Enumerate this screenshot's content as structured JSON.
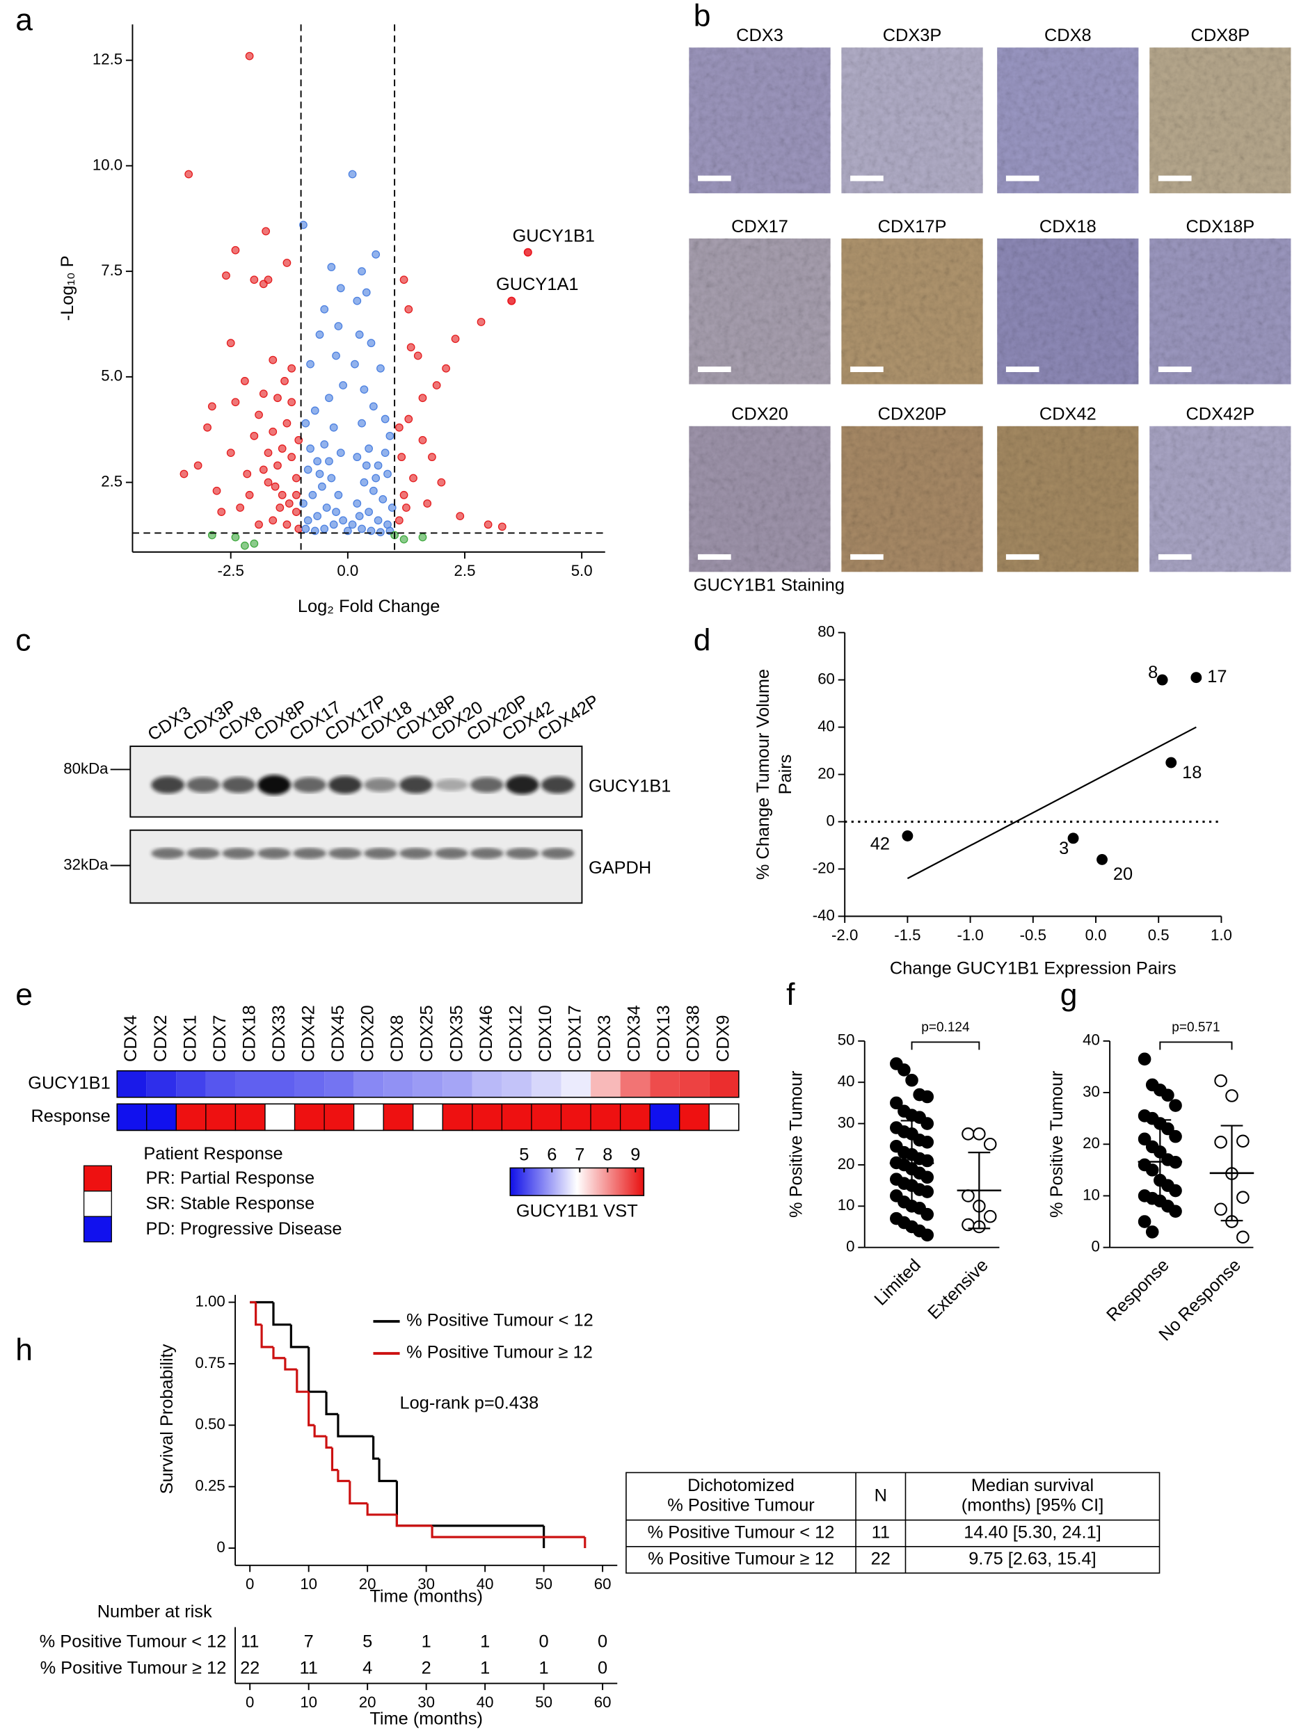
{
  "panel_labels": [
    "a",
    "b",
    "c",
    "d",
    "e",
    "f",
    "g",
    "h"
  ],
  "chart_data": [
    {
      "type": "scatter",
      "xlabel": "Log₂ Fold Change",
      "ylabel": "-Log₁₀ P",
      "xlim": [
        -4.6,
        5.5
      ],
      "ylim": [
        0.85,
        13.35
      ],
      "xticks": [
        -2.5,
        {
          "value": 0,
          "label": "0.0"
        },
        2.5,
        {
          "value": 5,
          "label": "5.0"
        }
      ],
      "yticks": [
        2.5,
        {
          "value": 5,
          "label": "5.0"
        },
        7.5,
        {
          "value": 10,
          "label": "10.0"
        },
        12.5
      ],
      "thresholds": {
        "x": [
          -1,
          1
        ],
        "y": 1.3
      },
      "annotations": [
        {
          "text": "GUCY1B1",
          "x": 3.85,
          "y": 7.95,
          "color": "#e8141c"
        },
        {
          "text": "GUCY1A1",
          "x": 3.5,
          "y": 6.8,
          "color": "#e8141c"
        }
      ],
      "series": [
        {
          "color": "#e41a1c",
          "x": [
            -2.1,
            -3.4,
            -2.4,
            -1.75,
            -1.7,
            -1.8,
            -2.6,
            -1.3,
            -2.0,
            -2.5,
            -1.6,
            -1.2,
            -3.0,
            -3.5,
            -3.2,
            -2.8,
            -2.9,
            -2.2,
            -2.5,
            -2.0,
            -1.5,
            -1.3,
            -1.8,
            -1.4,
            -1.1,
            -1.6,
            -2.3,
            -1.2,
            -1.9,
            -1.4,
            -1.7,
            -1.1,
            -2.7,
            -1.3,
            -1.5,
            -2.1,
            -1.2,
            -1.6,
            -1.9,
            -1.05,
            -1.35,
            -2.4,
            -1.8,
            -1.1,
            -1.45,
            -1.7,
            -2.15,
            -1.25,
            -1.55,
            -1.05,
            1.2,
            1.5,
            2.3,
            2.85,
            1.3,
            2.1,
            1.9,
            1.3,
            1.6,
            1.8,
            1.1,
            1.4,
            1.2,
            1.1,
            2.0,
            1.7,
            2.4,
            3.0,
            3.3,
            1.35,
            1.15,
            1.6,
            1.25
          ],
          "y": [
            12.6,
            9.8,
            8.0,
            8.45,
            7.3,
            7.2,
            7.4,
            7.7,
            7.3,
            5.8,
            5.4,
            5.2,
            3.8,
            2.7,
            2.9,
            2.3,
            4.3,
            4.9,
            3.2,
            3.6,
            4.5,
            3.9,
            2.8,
            2.2,
            1.8,
            1.6,
            1.9,
            3.1,
            4.1,
            3.3,
            2.5,
            2.6,
            1.8,
            1.5,
            2.9,
            2.2,
            4.4,
            3.7,
            1.5,
            3.5,
            4.9,
            4.4,
            4.6,
            2.2,
            1.9,
            3.2,
            2.7,
            2.0,
            2.4,
            1.4,
            7.3,
            5.5,
            5.9,
            6.3,
            6.6,
            5.2,
            4.8,
            4.0,
            3.5,
            3.1,
            3.8,
            2.6,
            2.2,
            1.6,
            2.5,
            2.0,
            1.7,
            1.5,
            1.45,
            5.7,
            3.1,
            4.5,
            1.9
          ]
        },
        {
          "color": "#4a7fe0",
          "x": [
            0.1,
            -0.95,
            0.6,
            -0.35,
            0.3,
            -0.15,
            0.4,
            -0.5,
            0.2,
            -0.2,
            0.25,
            -0.6,
            0.5,
            -0.25,
            0.15,
            -0.8,
            0.7,
            -0.1,
            0.35,
            -0.4,
            0.55,
            -0.7,
            0.8,
            -0.9,
            0.9,
            -0.3,
            0.3,
            -0.5,
            0.45,
            -0.15,
            0.2,
            -0.65,
            0.65,
            -0.85,
            0.85,
            -0.35,
            0.35,
            -0.55,
            0.55,
            -0.75,
            0.75,
            -0.95,
            0.95,
            -0.2,
            0.2,
            -0.45,
            0.45,
            -0.65,
            0.65,
            -0.85,
            0.85,
            -0.1,
            0.1,
            -0.3,
            0.3,
            -0.5,
            0.5,
            -0.7,
            0.7,
            -0.9,
            0.9,
            0.0,
            -0.25,
            0.25,
            -0.6,
            0.6,
            -0.4,
            0.4,
            -0.8,
            0.8
          ],
          "y": [
            9.8,
            8.6,
            7.9,
            7.6,
            7.5,
            7.1,
            7.0,
            6.6,
            6.8,
            6.2,
            6.0,
            6.0,
            5.8,
            5.5,
            5.3,
            5.3,
            5.2,
            4.8,
            4.7,
            4.5,
            4.3,
            4.2,
            4.0,
            3.9,
            3.6,
            3.8,
            3.9,
            3.4,
            3.3,
            3.2,
            3.1,
            3.0,
            2.9,
            2.8,
            2.7,
            2.6,
            2.5,
            2.4,
            2.3,
            2.2,
            2.1,
            2.0,
            1.9,
            2.2,
            2.0,
            1.9,
            1.8,
            1.7,
            1.6,
            1.6,
            1.5,
            1.6,
            1.5,
            1.5,
            1.4,
            1.4,
            1.35,
            1.35,
            1.32,
            1.4,
            1.35,
            1.35,
            1.8,
            1.7,
            2.7,
            2.6,
            3.0,
            2.9,
            3.3,
            3.2
          ]
        },
        {
          "color": "#3ea83e",
          "x": [
            -2.0,
            -2.4,
            -2.9,
            -2.2,
            1.0,
            1.6,
            1.2
          ],
          "y": [
            1.05,
            1.2,
            1.25,
            1.0,
            1.25,
            1.2,
            1.15
          ]
        }
      ]
    },
    {
      "type": "scatter",
      "xlabel": "Change GUCY1B1 Expression Pairs",
      "ylabel": [
        "% Change Tumour Volume",
        "Pairs"
      ],
      "xlim": [
        -2,
        1
      ],
      "ylim": [
        -40,
        80
      ],
      "xticks": [
        {
          "value": -2,
          "label": "-2.0"
        },
        -1.5,
        {
          "value": -1,
          "label": "-1.0"
        },
        -0.5,
        {
          "value": 0,
          "label": "0.0"
        },
        0.5,
        {
          "value": 1,
          "label": "1.0"
        }
      ],
      "yticks": [
        -40,
        -20,
        0,
        20,
        40,
        60,
        80
      ],
      "refline": 0,
      "trendline": {
        "x": [
          -1.5,
          0.8
        ],
        "y": [
          -24,
          40
        ]
      },
      "labels": [
        "42",
        "3",
        "20",
        "8",
        "18",
        "17"
      ],
      "x": [
        -1.5,
        -0.18,
        0.05,
        0.53,
        0.6,
        0.8
      ],
      "y": [
        -6,
        -7,
        -16,
        60,
        25,
        61
      ],
      "color": "#000000"
    },
    {
      "type": "heatmap",
      "categories": [
        "CDX4",
        "CDX2",
        "CDX1",
        "CDX7",
        "CDX18",
        "CDX33",
        "CDX42",
        "CDX45",
        "CDX20",
        "CDX8",
        "CDX25",
        "CDX35",
        "CDX46",
        "CDX12",
        "CDX10",
        "CDX17",
        "CDX3",
        "CDX34",
        "CDX13",
        "CDX38",
        "CDX9"
      ],
      "rows": [
        "GUCY1B1",
        "Response"
      ],
      "values": [
        4.6,
        4.8,
        5.0,
        5.2,
        5.3,
        5.3,
        5.4,
        5.5,
        5.7,
        5.8,
        5.9,
        6.0,
        6.2,
        6.3,
        6.5,
        6.7,
        7.6,
        8.3,
        8.7,
        8.8,
        9.0
      ],
      "response": [
        "PD",
        "PD",
        "PR",
        "PR",
        "PR",
        "SR",
        "PR",
        "PR",
        "SR",
        "PR",
        "SR",
        "PR",
        "PR",
        "PR",
        "PR",
        "PR",
        "PR",
        "PR",
        "PD",
        "PR",
        "SR"
      ],
      "legend": {
        "title": "Patient Response",
        "entries": [
          {
            "label": "PR: Partial Response",
            "color": "#ee1111"
          },
          {
            "label": "SR: Stable Response",
            "color": "#ffffff"
          },
          {
            "label": "PD: Progressive Disease",
            "color": "#1111ee"
          }
        ]
      },
      "colorbar": {
        "label": "GUCY1B1 VST",
        "clim": [
          4.5,
          9.3
        ],
        "ticks": [
          5,
          6,
          7,
          8,
          9
        ],
        "colors": [
          "#1010e8",
          "#ffffff",
          "#e81010"
        ]
      }
    },
    {
      "type": "dot",
      "ylabel": "% Positive Tumour",
      "ylim": [
        0,
        50
      ],
      "yticks": [
        0,
        10,
        20,
        30,
        40,
        50
      ],
      "pvalue": "p=0.124",
      "groups": [
        {
          "name": "Limited",
          "marker": "filled",
          "mean": 20.4,
          "sd": 10.3,
          "values": [
            44.5,
            43,
            40.5,
            37,
            36.5,
            35,
            33,
            32,
            31.5,
            30,
            29,
            28,
            27.5,
            26,
            25.5,
            24.5,
            23,
            22.5,
            21.5,
            21,
            20.5,
            20,
            19,
            18,
            17,
            16.5,
            15.5,
            15,
            14,
            13.5,
            12.5,
            11,
            10,
            9.5,
            8,
            7,
            6,
            5,
            4,
            3
          ]
        },
        {
          "name": "Extensive",
          "marker": "open",
          "mean": 13.8,
          "sd": 9.2,
          "values": [
            27.5,
            27.5,
            25,
            12.5,
            10,
            7.5,
            5.5,
            5
          ]
        }
      ]
    },
    {
      "type": "dot",
      "ylabel": "% Positive Tumour",
      "ylim": [
        0,
        40
      ],
      "yticks": [
        0,
        10,
        20,
        30,
        40
      ],
      "pvalue": "p=0.571",
      "groups": [
        {
          "name": "Response",
          "marker": "filled",
          "mean": 16.6,
          "sd": 8.1,
          "values": [
            36.5,
            31.5,
            30.5,
            29.5,
            27.5,
            25.5,
            25,
            24,
            23,
            21.5,
            21,
            19.5,
            18.5,
            17,
            16.5,
            16,
            15,
            13,
            12,
            11,
            10,
            9.5,
            9,
            8,
            7,
            5,
            3
          ]
        },
        {
          "name": "No Response",
          "marker": "open",
          "mean": 14.4,
          "sd": 9.2,
          "values": [
            32.3,
            29.4,
            20.6,
            20.4,
            14.3,
            9.7,
            7.4,
            5,
            2
          ]
        }
      ]
    },
    {
      "type": "survival",
      "xlabel": "Time (months)",
      "ylabel": "Survival Probability",
      "xlim": [
        -2.5,
        62.5
      ],
      "ylim": [
        -0.07,
        1.03
      ],
      "xticks": [
        0,
        10,
        20,
        30,
        40,
        50,
        60
      ],
      "yticks": [
        0,
        0.25,
        {
          "value": 0.5,
          "label": "0.50"
        },
        0.75,
        {
          "value": 1,
          "label": "1.00"
        }
      ],
      "annotation": "Log-rank p=0.438",
      "series": [
        {
          "name": "% Positive Tumour < 12",
          "color": "#000000",
          "x": [
            0,
            4,
            7,
            10,
            13,
            15,
            21,
            22,
            25,
            50
          ],
          "y": [
            1,
            0.909,
            0.818,
            0.636,
            0.545,
            0.455,
            0.364,
            0.273,
            0.091,
            0
          ]
        },
        {
          "name": "% Positive Tumour ≥ 12",
          "color": "#cc1111",
          "x": [
            0,
            1,
            2,
            4,
            6,
            8,
            10,
            11,
            13,
            14,
            15,
            17,
            20,
            25,
            31,
            57
          ],
          "y": [
            1,
            0.909,
            0.818,
            0.773,
            0.727,
            0.636,
            0.5,
            0.455,
            0.409,
            0.318,
            0.273,
            0.182,
            0.136,
            0.091,
            0.045,
            0
          ]
        }
      ],
      "risk_table": {
        "title": "Number at risk",
        "xticks": [
          0,
          10,
          20,
          30,
          40,
          50,
          60
        ],
        "xlabel": "Time (months)",
        "rows": [
          {
            "name": "% Positive Tumour < 12",
            "values": [
              11,
              7,
              5,
              1,
              1,
              0,
              0
            ]
          },
          {
            "name": "% Positive Tumour ≥ 12",
            "values": [
              22,
              11,
              4,
              2,
              1,
              1,
              0
            ]
          }
        ]
      }
    }
  ],
  "ihc": {
    "caption": "GUCY1B1 Staining",
    "labels": [
      {
        "text": "CDX3",
        "color": "#000000"
      },
      {
        "text": "CDX3P",
        "color": "#e8141c"
      },
      {
        "text": "CDX8",
        "color": "#000000"
      },
      {
        "text": "CDX8P",
        "color": "#e8141c"
      },
      {
        "text": "CDX17",
        "color": "#000000"
      },
      {
        "text": "CDX17P",
        "color": "#e8141c"
      },
      {
        "text": "CDX18",
        "color": "#000000"
      },
      {
        "text": "CDX18P",
        "color": "#e8141c"
      },
      {
        "text": "CDX20",
        "color": "#000000"
      },
      {
        "text": "CDX20P",
        "color": "#e8141c"
      },
      {
        "text": "CDX42",
        "color": "#000000"
      },
      {
        "text": "CDX42P",
        "color": "#e8141c"
      }
    ]
  },
  "blot": {
    "markers": [
      "80kDa",
      "32kDa"
    ],
    "proteins": [
      "GUCY1B1",
      "GAPDH"
    ],
    "lanes": [
      {
        "text": "CDX3",
        "color": "#000000"
      },
      {
        "text": "CDX3P",
        "color": "#e8141c"
      },
      {
        "text": "CDX8",
        "color": "#000000"
      },
      {
        "text": "CDX8P",
        "color": "#e8141c"
      },
      {
        "text": "CDX17",
        "color": "#000000"
      },
      {
        "text": "CDX17P",
        "color": "#e8141c"
      },
      {
        "text": "CDX18",
        "color": "#000000"
      },
      {
        "text": "CDX18P",
        "color": "#e8141c"
      },
      {
        "text": "CDX20",
        "color": "#000000"
      },
      {
        "text": "CDX20P",
        "color": "#e8141c"
      },
      {
        "text": "CDX42",
        "color": "#000000"
      },
      {
        "text": "CDX42P",
        "color": "#e8141c"
      }
    ]
  },
  "table": {
    "header": [
      [
        "Dichotomized",
        "% Positive Tumour"
      ],
      [
        "N"
      ],
      [
        "Median survival",
        "(months)   [95% CI]"
      ]
    ],
    "rows": [
      [
        "% Positive Tumour < 12",
        "11",
        "14.40 [5.30, 24.1]"
      ],
      [
        "% Positive Tumour ≥ 12",
        "22",
        "9.75 [2.63, 15.4]"
      ]
    ]
  }
}
